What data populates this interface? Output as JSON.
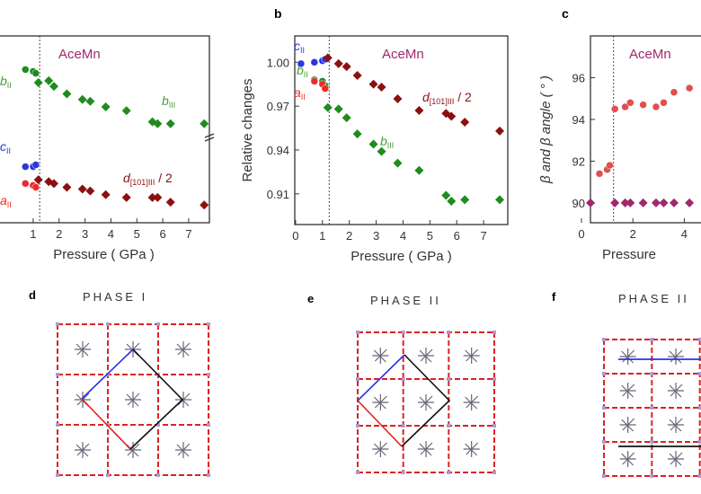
{
  "colors": {
    "green": "#1e8c1e",
    "blue": "#2a35e0",
    "red": "#f02a2a",
    "darkred": "#8b1010",
    "magenta": "#a0286e",
    "angle_red": "#e05050"
  },
  "chart_data": [
    {
      "panel": "a",
      "type": "scatter",
      "title": "AceMn",
      "xlabel": "Pressure ( GPa )",
      "ylabel": "",
      "xlim": [
        -0.35,
        7.8
      ],
      "ylim": [
        0,
        10
      ],
      "xticks": [
        "1",
        "2",
        "3",
        "4",
        "5",
        "6",
        "7"
      ],
      "transition_pressure": 1.25,
      "series": [
        {
          "name": "b_II",
          "color": "#1e8c1e",
          "marker": "circle",
          "x": [
            0.7,
            1.0,
            1.1
          ],
          "y": [
            8.2,
            8.1,
            8.0
          ]
        },
        {
          "name": "b_III",
          "color": "#1e8c1e",
          "marker": "diamond",
          "x": [
            1.2,
            1.6,
            1.8,
            2.3,
            2.9,
            3.2,
            3.8,
            4.6,
            5.6,
            5.8,
            6.3,
            7.6
          ],
          "y": [
            7.5,
            7.6,
            7.3,
            6.9,
            6.6,
            6.5,
            6.2,
            6.0,
            5.4,
            5.3,
            5.3,
            5.3
          ]
        },
        {
          "name": "c_II",
          "color": "#2a35e0",
          "marker": "circle",
          "x": [
            0.7,
            1.0,
            1.1
          ],
          "y": [
            3.0,
            3.0,
            3.1
          ]
        },
        {
          "name": "a_II",
          "color": "#f02a2a",
          "marker": "circle",
          "x": [
            0.7,
            1.0,
            1.1
          ],
          "y": [
            2.1,
            2.0,
            1.9
          ]
        },
        {
          "name": "d[101]III / 2",
          "color": "#8b1010",
          "marker": "diamond",
          "x": [
            1.2,
            1.6,
            1.8,
            2.3,
            2.9,
            3.2,
            3.8,
            4.6,
            5.6,
            5.8,
            6.3,
            7.6
          ],
          "y": [
            2.3,
            2.2,
            2.1,
            1.9,
            1.8,
            1.7,
            1.5,
            1.35,
            1.35,
            1.35,
            1.1,
            0.95
          ]
        }
      ]
    },
    {
      "panel": "b",
      "type": "scatter",
      "title": "AceMn",
      "xlabel": "Pressure ( GPa )",
      "ylabel": "Relative changes",
      "xlim": [
        -0.03,
        7.9
      ],
      "ylim": [
        0.889,
        1.018
      ],
      "xticks": [
        "0",
        "1",
        "2",
        "3",
        "4",
        "5",
        "6",
        "7"
      ],
      "yticks": [
        "0.91",
        "0.94",
        "0.97",
        "1.00"
      ],
      "transition_pressure": 1.25,
      "series": [
        {
          "name": "c_II",
          "color": "#2a35e0",
          "marker": "circle",
          "x": [
            0.2,
            0.7,
            1.0,
            1.1
          ],
          "y": [
            0.999,
            1.0,
            1.001,
            1.002
          ]
        },
        {
          "name": "b_II",
          "color": "#1e8c1e",
          "marker": "circle",
          "x": [
            0.7,
            1.0,
            1.1
          ],
          "y": [
            0.988,
            0.987,
            0.984
          ]
        },
        {
          "name": "a_II",
          "color": "#f02a2a",
          "marker": "circle",
          "x": [
            0.7,
            1.0,
            1.1
          ],
          "y": [
            0.987,
            0.985,
            0.982
          ]
        },
        {
          "name": "d[101]III / 2",
          "color": "#8b1010",
          "marker": "diamond",
          "x": [
            1.2,
            1.6,
            1.9,
            2.3,
            2.9,
            3.2,
            3.8,
            4.6,
            5.6,
            5.8,
            6.3,
            7.6
          ],
          "y": [
            1.003,
            0.999,
            0.997,
            0.991,
            0.985,
            0.983,
            0.975,
            0.967,
            0.965,
            0.963,
            0.959,
            0.953
          ]
        },
        {
          "name": "b_III",
          "color": "#1e8c1e",
          "marker": "diamond",
          "x": [
            1.2,
            1.6,
            1.9,
            2.3,
            2.9,
            3.2,
            3.8,
            4.6,
            5.6,
            5.8,
            6.3,
            7.6
          ],
          "y": [
            0.969,
            0.968,
            0.962,
            0.951,
            0.944,
            0.939,
            0.931,
            0.926,
            0.909,
            0.905,
            0.906,
            0.906
          ]
        }
      ]
    },
    {
      "panel": "c",
      "type": "scatter",
      "title": "AceMn",
      "xlabel": "Pressure",
      "ylabel": "β and β angle ( ° )",
      "xlim": [
        0.35,
        5.0
      ],
      "ylim": [
        89.05,
        98
      ],
      "xticks": [
        "0",
        "2",
        "4"
      ],
      "yticks": [
        "90",
        "92",
        "94",
        "96"
      ],
      "transition_pressure": 1.25,
      "series": [
        {
          "color": "#e05050",
          "marker": "circle",
          "x": [
            0.7,
            1.0,
            1.1,
            1.3,
            1.7,
            1.9,
            2.4,
            2.9,
            3.2,
            3.6,
            4.2
          ],
          "y": [
            91.4,
            91.6,
            91.8,
            94.5,
            94.6,
            94.8,
            94.7,
            94.6,
            94.8,
            95.3,
            95.5
          ]
        },
        {
          "color": "#a0286e",
          "marker": "diamond",
          "x": [
            0.35,
            1.3,
            1.7,
            1.9,
            2.4,
            2.9,
            3.2,
            3.6,
            4.2
          ],
          "y": [
            90,
            90,
            90,
            90,
            90,
            90,
            90,
            90,
            90
          ]
        }
      ]
    }
  ],
  "labels": {
    "a_b2": "b",
    "a_b2s": "II",
    "a_b3": "b",
    "a_b3s": "III",
    "a_c2": "c",
    "a_c2s": "II",
    "a_a2": "a",
    "a_a2s": "II",
    "a_d": "d",
    "a_ds": "[101]III",
    "a_dt": " / 2",
    "b": "b",
    "c": "c",
    "d": "d",
    "e": "e",
    "f": "f"
  },
  "structures": [
    {
      "label": "d",
      "title": "PHASE I"
    },
    {
      "label": "e",
      "title": "PHASE II"
    },
    {
      "label": "f",
      "title": "PHASE II"
    }
  ]
}
